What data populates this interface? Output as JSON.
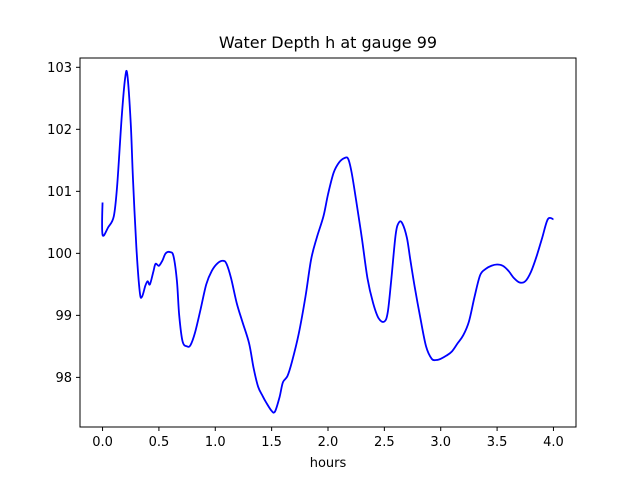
{
  "chart_data": {
    "type": "line",
    "title": "Water Depth h at gauge 99",
    "xlabel": "hours",
    "ylabel": "",
    "xlim": [
      -0.2,
      4.2
    ],
    "ylim": [
      97.2,
      103.15
    ],
    "xticks": [
      0.0,
      0.5,
      1.0,
      1.5,
      2.0,
      2.5,
      3.0,
      3.5,
      4.0
    ],
    "xtick_labels": [
      "0.0",
      "0.5",
      "1.0",
      "1.5",
      "2.0",
      "2.5",
      "3.0",
      "3.5",
      "4.0"
    ],
    "yticks": [
      98,
      99,
      100,
      101,
      102,
      103
    ],
    "ytick_labels": [
      "98",
      "99",
      "100",
      "101",
      "102",
      "103"
    ],
    "grid": false,
    "series": [
      {
        "color": "#0000ff",
        "x": [
          0.0,
          0.0,
          0.05,
          0.1,
          0.13,
          0.17,
          0.2,
          0.22,
          0.25,
          0.27,
          0.3,
          0.33,
          0.35,
          0.38,
          0.4,
          0.42,
          0.45,
          0.47,
          0.5,
          0.53,
          0.56,
          0.6,
          0.63,
          0.66,
          0.68,
          0.71,
          0.75,
          0.78,
          0.82,
          0.87,
          0.92,
          0.97,
          1.02,
          1.07,
          1.1,
          1.14,
          1.19,
          1.24,
          1.3,
          1.34,
          1.38,
          1.42,
          1.45,
          1.5,
          1.53,
          1.57,
          1.6,
          1.64,
          1.68,
          1.74,
          1.8,
          1.85,
          1.9,
          1.96,
          2.0,
          2.05,
          2.1,
          2.15,
          2.18,
          2.21,
          2.25,
          2.3,
          2.35,
          2.4,
          2.45,
          2.5,
          2.53,
          2.56,
          2.6,
          2.63,
          2.66,
          2.7,
          2.73,
          2.77,
          2.82,
          2.87,
          2.92,
          2.96,
          3.0,
          3.05,
          3.1,
          3.15,
          3.2,
          3.25,
          3.3,
          3.35,
          3.4,
          3.45,
          3.5,
          3.55,
          3.6,
          3.65,
          3.7,
          3.75,
          3.8,
          3.85,
          3.9,
          3.95,
          4.0
        ],
        "y": [
          100.82,
          100.3,
          100.42,
          100.6,
          101.1,
          102.2,
          102.82,
          102.88,
          102.1,
          101.2,
          100.1,
          99.38,
          99.3,
          99.48,
          99.55,
          99.5,
          99.7,
          99.83,
          99.8,
          99.88,
          100.0,
          100.02,
          99.95,
          99.55,
          99.0,
          98.58,
          98.5,
          98.52,
          98.72,
          99.1,
          99.5,
          99.72,
          99.84,
          99.88,
          99.83,
          99.6,
          99.2,
          98.9,
          98.55,
          98.15,
          97.85,
          97.7,
          97.6,
          97.46,
          97.45,
          97.68,
          97.92,
          98.02,
          98.25,
          98.7,
          99.3,
          99.9,
          100.25,
          100.6,
          100.95,
          101.3,
          101.47,
          101.54,
          101.52,
          101.3,
          100.85,
          100.25,
          99.6,
          99.2,
          98.95,
          98.9,
          99.05,
          99.55,
          100.3,
          100.5,
          100.48,
          100.25,
          99.9,
          99.45,
          98.95,
          98.5,
          98.3,
          98.28,
          98.3,
          98.35,
          98.42,
          98.55,
          98.68,
          98.9,
          99.3,
          99.65,
          99.75,
          99.8,
          99.82,
          99.8,
          99.72,
          99.6,
          99.53,
          99.55,
          99.7,
          99.95,
          100.25,
          100.55,
          100.55
        ]
      }
    ]
  }
}
